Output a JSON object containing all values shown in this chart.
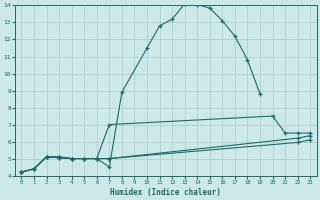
{
  "xlabel": "Humidex (Indice chaleur)",
  "xlim": [
    -0.5,
    23.5
  ],
  "ylim": [
    4,
    14
  ],
  "yticks": [
    4,
    5,
    6,
    7,
    8,
    9,
    10,
    11,
    12,
    13,
    14
  ],
  "xticks": [
    0,
    1,
    2,
    3,
    4,
    5,
    6,
    7,
    8,
    9,
    10,
    11,
    12,
    13,
    14,
    15,
    16,
    17,
    18,
    19,
    20,
    21,
    22,
    23
  ],
  "bg_color": "#cce8e8",
  "grid_color": "#aacccc",
  "line_color": "#1a6b6b",
  "series": [
    {
      "x": [
        0,
        1,
        2,
        3,
        4,
        5,
        6,
        7,
        8,
        10,
        11,
        12,
        13,
        14,
        15,
        16,
        17,
        18,
        19
      ],
      "y": [
        4.2,
        4.4,
        5.1,
        5.1,
        5.0,
        5.0,
        5.0,
        4.5,
        8.9,
        11.5,
        12.8,
        13.2,
        14.1,
        14.05,
        13.85,
        13.1,
        12.2,
        10.8,
        8.8
      ]
    },
    {
      "x": [
        0,
        1,
        2,
        3,
        4,
        5,
        6,
        7,
        20,
        21,
        22,
        23
      ],
      "y": [
        4.2,
        4.4,
        5.1,
        5.1,
        5.0,
        5.0,
        5.0,
        7.0,
        7.5,
        6.5,
        6.5,
        6.5
      ]
    },
    {
      "x": [
        0,
        1,
        2,
        3,
        4,
        5,
        6,
        7,
        22,
        23
      ],
      "y": [
        4.2,
        4.4,
        5.1,
        5.05,
        5.0,
        5.0,
        5.0,
        5.0,
        6.2,
        6.35
      ]
    },
    {
      "x": [
        0,
        1,
        2,
        3,
        4,
        5,
        6,
        7,
        22,
        23
      ],
      "y": [
        4.2,
        4.4,
        5.1,
        5.05,
        5.0,
        5.0,
        5.0,
        5.0,
        5.95,
        6.1
      ]
    }
  ]
}
